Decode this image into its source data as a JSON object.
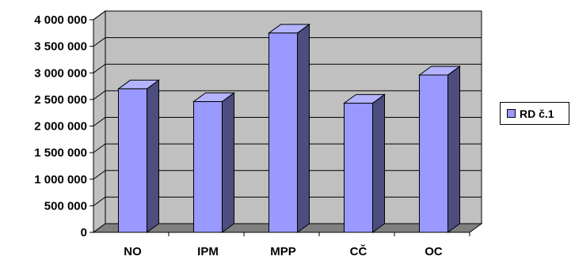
{
  "chart_data": {
    "type": "bar",
    "categories": [
      "NO",
      "IPM",
      "MPP",
      "CČ",
      "OC"
    ],
    "series": [
      {
        "name": "RD č.1",
        "values": [
          2700000,
          2460000,
          3750000,
          2430000,
          2960000
        ]
      }
    ],
    "yticks": [
      "0",
      "500 000",
      "1 000 000",
      "1 500 000",
      "2 000 000",
      "2 500 000",
      "3 000 000",
      "3 500 000",
      "4 000 000"
    ],
    "ylim": [
      0,
      4000000
    ],
    "title": "",
    "xlabel": "",
    "ylabel": "",
    "grid": true,
    "legend_position": "right",
    "style": "3d-column"
  },
  "colors": {
    "bar_front": "#9999ff",
    "bar_side": "#4d4d80",
    "bar_top": "#b3b3ff",
    "wall": "#c0c0c0",
    "floor": "#808080",
    "gridline": "#000000"
  }
}
